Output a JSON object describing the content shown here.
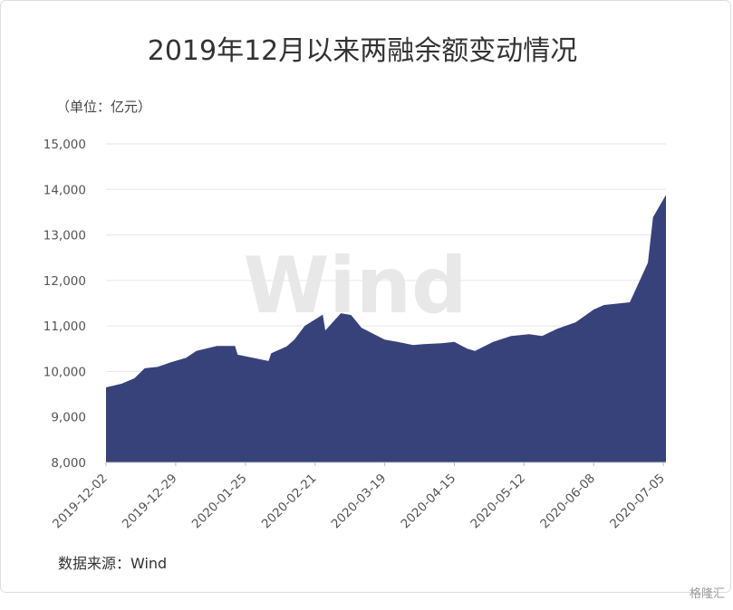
{
  "chart_data": {
    "type": "area",
    "title": "2019年12月以来两融余额变动情况",
    "subtitle": "（单位：亿元）",
    "source": "数据来源：Wind",
    "watermark": "Wind",
    "logo": "格隆汇",
    "color": "#38427a",
    "grid": true,
    "x": [
      "2019-12-02",
      "2019-12-08",
      "2019-12-13",
      "2019-12-17",
      "2019-12-22",
      "2019-12-27",
      "2020-01-02",
      "2020-01-06",
      "2020-01-14",
      "2020-01-21",
      "2020-01-22",
      "2020-02-03",
      "2020-02-04",
      "2020-02-10",
      "2020-02-13",
      "2020-02-17",
      "2020-02-24",
      "2020-02-25",
      "2020-03-02",
      "2020-03-06",
      "2020-03-10",
      "2020-03-19",
      "2020-03-24",
      "2020-03-30",
      "2020-04-03",
      "2020-04-10",
      "2020-04-15",
      "2020-04-20",
      "2020-04-23",
      "2020-04-30",
      "2020-05-07",
      "2020-05-14",
      "2020-05-19",
      "2020-05-25",
      "2020-06-01",
      "2020-06-08",
      "2020-06-12",
      "2020-06-22",
      "2020-06-29",
      "2020-07-01",
      "2020-07-06"
    ],
    "values": [
      9650,
      9730,
      9850,
      10070,
      10100,
      10200,
      10300,
      10450,
      10560,
      10560,
      10370,
      10230,
      10400,
      10550,
      10700,
      11000,
      11250,
      10900,
      11280,
      11240,
      10960,
      10700,
      10650,
      10580,
      10600,
      10620,
      10650,
      10500,
      10450,
      10650,
      10780,
      10820,
      10780,
      10940,
      11080,
      11360,
      11460,
      11520,
      12390,
      13390,
      13880
    ],
    "xlim": [
      "2019-12-02",
      "2020-07-06"
    ],
    "xticks": [
      "2019-12-02",
      "2019-12-29",
      "2020-01-25",
      "2020-02-21",
      "2020-03-19",
      "2020-04-15",
      "2020-05-12",
      "2020-06-08",
      "2020-07-05"
    ],
    "ylim": [
      8000,
      15000
    ],
    "yticks": [
      {
        "value": 8000,
        "label": "8,000"
      },
      {
        "value": 9000,
        "label": "9,000"
      },
      {
        "value": 10000,
        "label": "10,000"
      },
      {
        "value": 11000,
        "label": "11,000"
      },
      {
        "value": 12000,
        "label": "12,000"
      },
      {
        "value": 13000,
        "label": "13,000"
      },
      {
        "value": 14000,
        "label": "14,000"
      },
      {
        "value": 15000,
        "label": "15,000"
      }
    ]
  }
}
